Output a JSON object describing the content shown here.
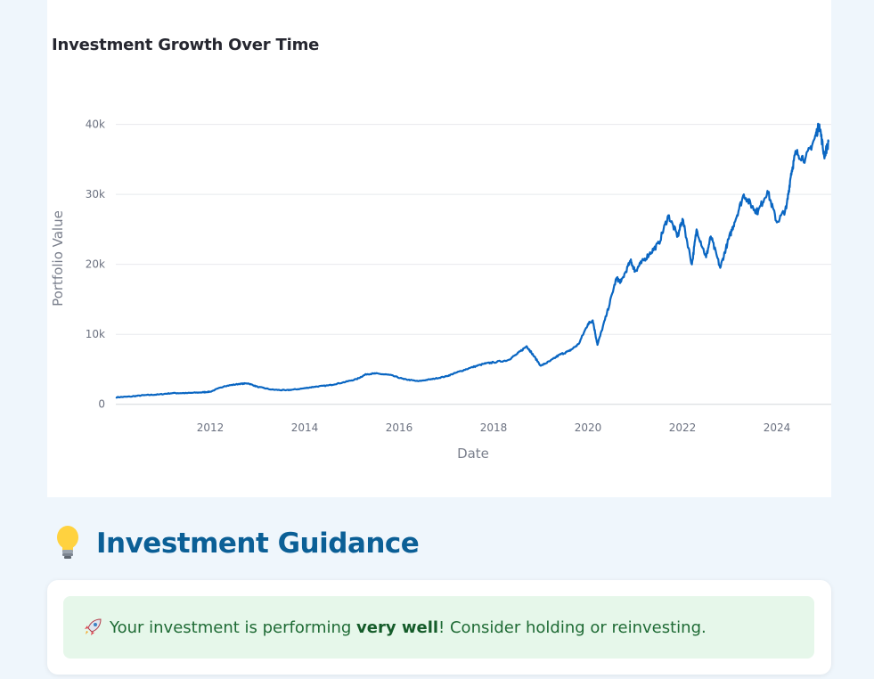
{
  "chart": {
    "title": "Investment Growth Over Time"
  },
  "chart_data": {
    "type": "line",
    "title": "Investment Growth Over Time",
    "xlabel": "Date",
    "ylabel": "Portfolio Value",
    "xlim": [
      2010.0,
      2025.15
    ],
    "ylim": [
      -800,
      42500
    ],
    "x_ticks": [
      2012,
      2014,
      2016,
      2018,
      2020,
      2022,
      2024
    ],
    "x_tick_labels": [
      "2012",
      "2014",
      "2016",
      "2018",
      "2020",
      "2022",
      "2024"
    ],
    "y_ticks": [
      0,
      10000,
      20000,
      30000,
      40000
    ],
    "y_tick_labels": [
      "0",
      "10k",
      "20k",
      "30k",
      "40k"
    ],
    "grid": true,
    "line_color": "#0a66c2",
    "series": [
      {
        "x": [
          2010.0,
          2010.3,
          2010.6,
          2010.9,
          2011.2,
          2011.5,
          2011.8,
          2012.0,
          2012.3,
          2012.6,
          2012.8,
          2013.0,
          2013.3,
          2013.6,
          2013.9,
          2014.2,
          2014.5,
          2014.8,
          2015.1,
          2015.3,
          2015.5,
          2015.8,
          2016.1,
          2016.4,
          2016.7,
          2017.0,
          2017.2,
          2017.5,
          2017.8,
          2018.0,
          2018.3,
          2018.5,
          2018.7,
          2018.8,
          2019.0,
          2019.2,
          2019.4,
          2019.6,
          2019.8,
          2020.0,
          2020.1,
          2020.2,
          2020.4,
          2020.6,
          2020.7,
          2020.9,
          2021.0,
          2021.1,
          2021.3,
          2021.5,
          2021.7,
          2021.9,
          2022.0,
          2022.2,
          2022.3,
          2022.5,
          2022.6,
          2022.8,
          2022.95,
          2023.1,
          2023.3,
          2023.5,
          2023.6,
          2023.8,
          2024.0,
          2024.2,
          2024.3,
          2024.4,
          2024.6,
          2024.8,
          2024.9,
          2025.0,
          2025.1
        ],
        "y": [
          1000,
          1100,
          1300,
          1400,
          1600,
          1600,
          1700,
          1800,
          2600,
          2900,
          3000,
          2500,
          2100,
          2000,
          2200,
          2500,
          2700,
          3100,
          3600,
          4300,
          4400,
          4200,
          3600,
          3300,
          3600,
          4000,
          4500,
          5200,
          5800,
          6000,
          6300,
          7200,
          8300,
          7400,
          5500,
          6200,
          7100,
          7600,
          8600,
          11500,
          12000,
          8500,
          13000,
          18000,
          17500,
          20500,
          19000,
          20000,
          21500,
          23000,
          27000,
          24000,
          26500,
          20000,
          25000,
          21000,
          24000,
          19500,
          23000,
          26000,
          30000,
          28000,
          27500,
          30500,
          26000,
          28000,
          33000,
          36000,
          35000,
          38000,
          40000,
          35500,
          37500
        ]
      }
    ]
  },
  "guidance": {
    "heading": "Investment Guidance",
    "icon": "lightbulb-icon",
    "message_before": "Your investment is performing ",
    "message_bold": "very well",
    "message_after": "! Consider holding or reinvesting.",
    "alert_bg": "#e6f7ea",
    "alert_text_color": "#1f6b35"
  }
}
